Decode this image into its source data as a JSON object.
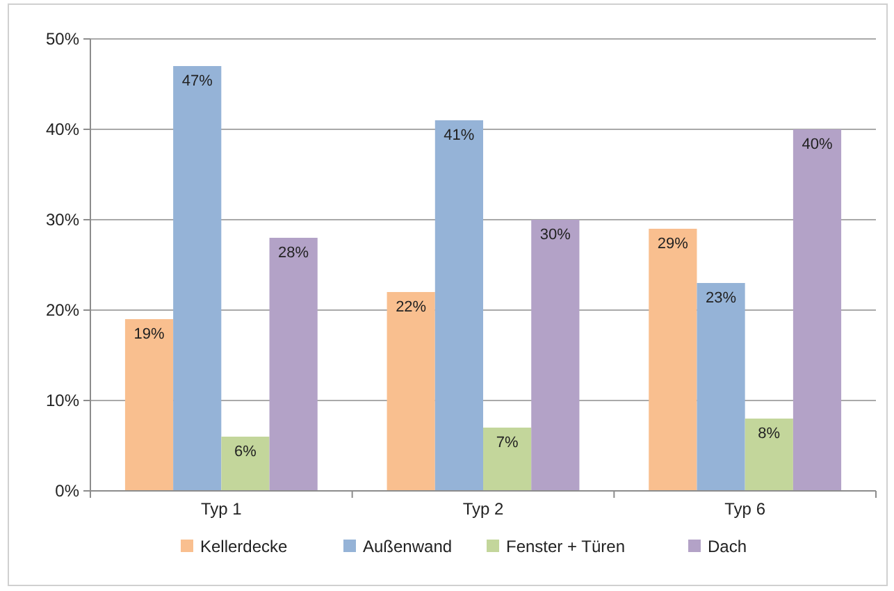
{
  "chart_data": {
    "type": "bar",
    "categories": [
      "Typ 1",
      "Typ 2",
      "Typ 6"
    ],
    "series": [
      {
        "name": "Kellerdecke",
        "color": "#f9bf8f",
        "values": [
          19,
          22,
          29
        ],
        "value_labels": [
          "19%",
          "22%",
          "29%"
        ]
      },
      {
        "name": "Außenwand",
        "color": "#95b3d7",
        "values": [
          47,
          41,
          23
        ],
        "value_labels": [
          "47%",
          "41%",
          "23%"
        ]
      },
      {
        "name": "Fenster + Türen",
        "color": "#c3d69b",
        "values": [
          6,
          7,
          8
        ],
        "value_labels": [
          "6%",
          "7%",
          "8%"
        ]
      },
      {
        "name": "Dach",
        "color": "#b3a2c7",
        "values": [
          28,
          30,
          40
        ],
        "value_labels": [
          "28%",
          "30%",
          "40%"
        ]
      }
    ],
    "ylim": [
      0,
      50
    ],
    "yticks": [
      {
        "value": 0,
        "label": "0%"
      },
      {
        "value": 10,
        "label": "10%"
      },
      {
        "value": 20,
        "label": "20%"
      },
      {
        "value": 30,
        "label": "30%"
      },
      {
        "value": 40,
        "label": "40%"
      },
      {
        "value": 50,
        "label": "50%"
      }
    ],
    "grid": "y",
    "legend": "bottom"
  }
}
